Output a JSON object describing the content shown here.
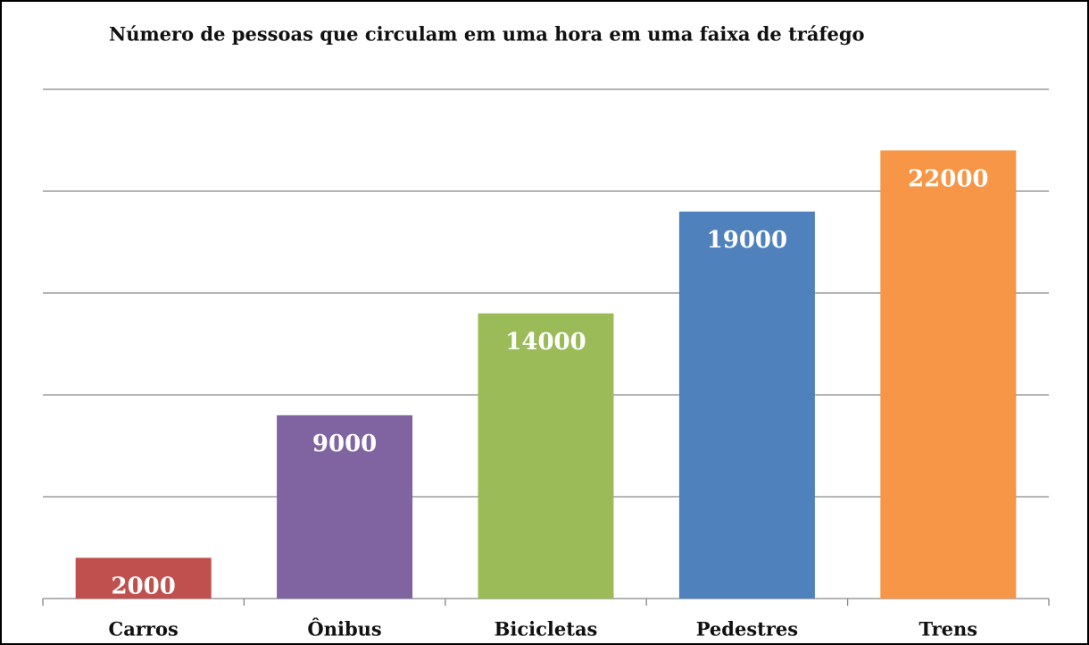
{
  "chart_data": {
    "type": "bar",
    "title": "Número de pessoas que circulam em uma hora em uma faixa de tráfego",
    "categories": [
      "Carros",
      "Ônibus",
      "Bicicletas",
      "Pedestres",
      "Trens"
    ],
    "values": [
      2000,
      9000,
      14000,
      19000,
      22000
    ],
    "colors": [
      "#c0504d",
      "#8064a2",
      "#9bbb59",
      "#4f81bd",
      "#f79646"
    ],
    "ylim": [
      0,
      25000
    ],
    "yticks": [
      0,
      5000,
      10000,
      15000,
      20000,
      25000
    ],
    "grid": true
  }
}
